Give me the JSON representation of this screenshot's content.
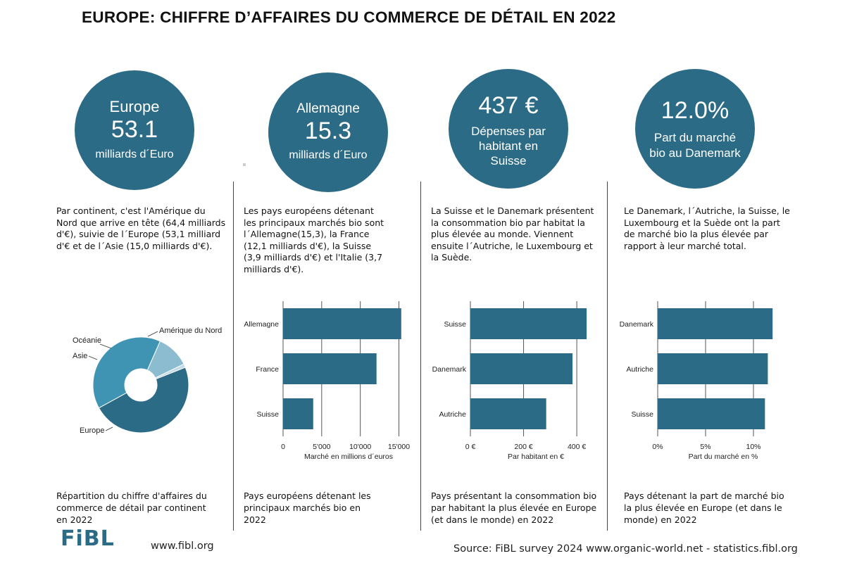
{
  "title": "EUROPE: CHIFFRE D’AFFAIRES DU COMMERCE DE DÉTAIL EN 2022",
  "colors": {
    "accent": "#2c6b86",
    "pie_light": "#3f93b3",
    "pie_pale": "#8cbccf",
    "pie_lightest": "#c2dbe6"
  },
  "panels": [
    {
      "circle": {
        "label": "Europe",
        "value": "53.1",
        "unit": "milliards d´Euro"
      },
      "text": "Par continent, c'est l'Amérique du Nord que arrive en tête (64,4 milliards d'€), suivie de l´Europe (53,1 milliard d'€ et de l´Asie (15,0 milliards d'€).",
      "caption": "Répartition du chiffre d'affaires du commerce de détail par continent en 2022"
    },
    {
      "circle": {
        "label": "Allemagne",
        "value": "15.3",
        "unit": "milliards d´Euro"
      },
      "text": "Les pays européens détenant les principaux marchés bio sont l´Allemagne(15,3), la France (12,1 milliards d'€), la Suisse (3,9 milliards d'€) et  l'Italie (3,7 milliards d'€).",
      "caption": "Pays européens détenant les principaux marchés bio en 2022"
    },
    {
      "circle": {
        "value": "437 €",
        "sub": "Dépenses par habitant en Suisse"
      },
      "text": "La Suisse et le Danemark présentent la consommation bio par habitat la plus élevée au monde. Viennent ensuite l´Autriche, le Luxembourg et la Suède.",
      "caption": "Pays présentant la consommation bio par habitant la plus élevée en Europe (et dans le monde) en 2022"
    },
    {
      "circle": {
        "value": "12.0%",
        "sub": "Part du marché bio au Danemark"
      },
      "text": "Le Danemark, l´Autriche, la Suisse, le Luxembourg et la Suède ont la part de marché bio la plus élevée par rapport à leur marché total.",
      "caption": "Pays détenant la part de marché bio la plus élevée en Europe (et dans le monde) en 2022"
    }
  ],
  "chart_data": [
    {
      "type": "pie",
      "donut": true,
      "title": "",
      "categories": [
        "Amérique du Nord",
        "Europe",
        "Asie",
        "Océanie"
      ],
      "values": [
        64.4,
        53.1,
        15.0,
        1.6
      ]
    },
    {
      "type": "bar",
      "orientation": "horizontal",
      "categories": [
        "Allemagne",
        "France",
        "Suisse"
      ],
      "values": [
        15300,
        12100,
        3900
      ],
      "xlabel": "Marché en millions d´euros",
      "ticks": [
        "0",
        "5'000",
        "10'000",
        "15'000"
      ],
      "tick_values": [
        0,
        5000,
        10000,
        15000
      ],
      "xlim": [
        0,
        15500
      ],
      "grid": true
    },
    {
      "type": "bar",
      "orientation": "horizontal",
      "categories": [
        "Suisse",
        "Danemark",
        "Autriche"
      ],
      "values": [
        437,
        384,
        285
      ],
      "xlabel": "Par habitant en €",
      "ticks": [
        "0 €",
        "200 €",
        "400 €"
      ],
      "tick_values": [
        0,
        200,
        400
      ],
      "xlim": [
        0,
        450
      ],
      "grid": true
    },
    {
      "type": "bar",
      "orientation": "horizontal",
      "categories": [
        "Danemark",
        "Autriche",
        "Suisse"
      ],
      "values": [
        12.0,
        11.5,
        11.2
      ],
      "xlabel": "Part du marché en %",
      "ticks": [
        "0%",
        "5%",
        "10%"
      ],
      "tick_values": [
        0,
        5,
        10
      ],
      "xlim": [
        0,
        12.5
      ],
      "grid": true
    }
  ],
  "footer": {
    "logo": "FiBL",
    "website": "www.fibl.org",
    "source": "Source: FiBL survey 2024 www.organic-world.net - statistics.fibl.org"
  }
}
